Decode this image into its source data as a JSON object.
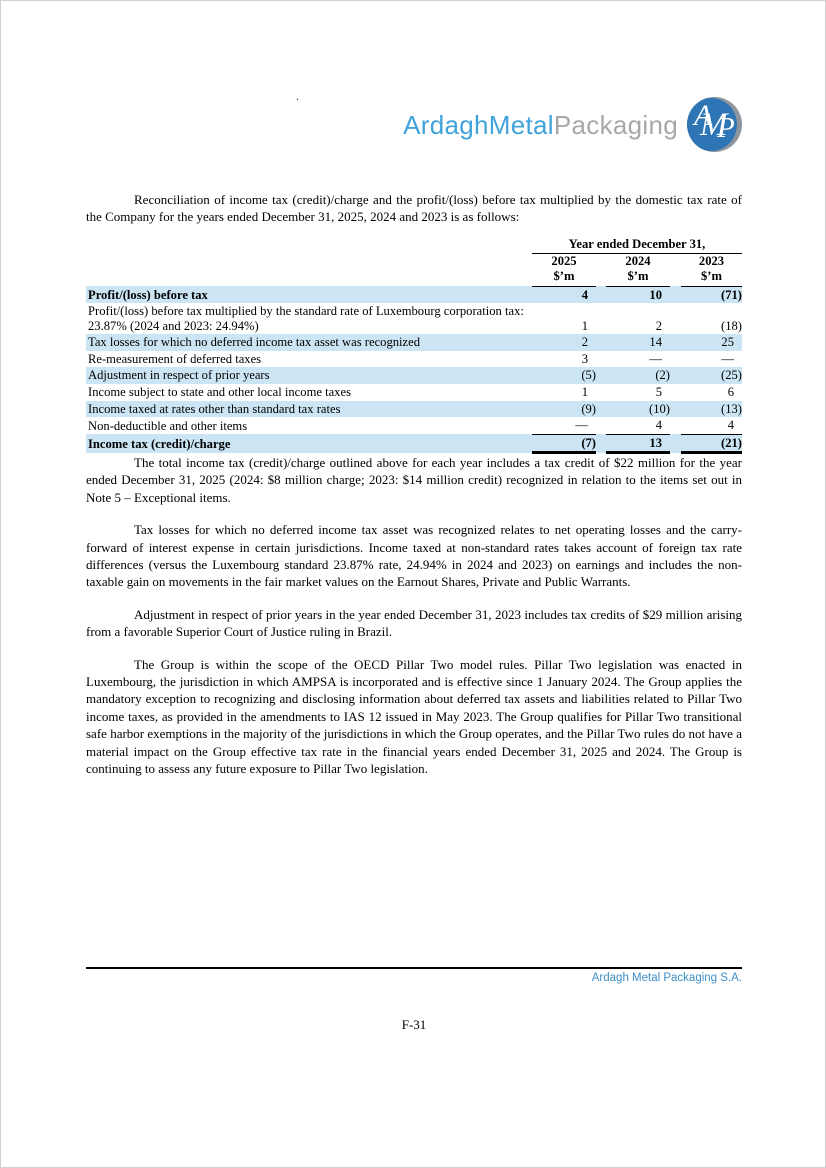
{
  "logo": {
    "brand_blue": "ArdaghMetal",
    "brand_gray": "Packaging",
    "monogram_a": "A",
    "monogram_m": "M",
    "monogram_p": "P"
  },
  "stray_mark": ".",
  "intro": "Reconciliation of income tax (credit)/charge and the profit/(loss) before tax multiplied by the domestic tax rate of the Company for the years ended December 31, 2025, 2024 and 2023 is as follows:",
  "table": {
    "spanner": "Year ended December 31,",
    "columns": [
      {
        "year": "2025",
        "unit": "$’m"
      },
      {
        "year": "2024",
        "unit": "$’m"
      },
      {
        "year": "2023",
        "unit": "$’m"
      }
    ],
    "rows": [
      {
        "label": "Profit/(loss) before tax",
        "v2025": "4",
        "v2024": "10",
        "v2023": "(71)"
      },
      {
        "label": "Profit/(loss) before tax multiplied by the standard rate of Luxembourg corporation tax: 23.87% (2024 and 2023: 24.94%)",
        "v2025": "1",
        "v2024": "2",
        "v2023": "(18)"
      },
      {
        "label": "Tax losses for which no deferred income tax asset was recognized",
        "v2025": "2",
        "v2024": "14",
        "v2023": "25"
      },
      {
        "label": "Re-measurement of deferred taxes",
        "v2025": "3",
        "v2024": "—",
        "v2023": "—"
      },
      {
        "label": "Adjustment in respect of prior years",
        "v2025": "(5)",
        "v2024": "(2)",
        "v2023": "(25)"
      },
      {
        "label": "Income subject to state and other local income taxes",
        "v2025": "1",
        "v2024": "5",
        "v2023": "6"
      },
      {
        "label": "Income taxed at rates other than standard tax rates",
        "v2025": "(9)",
        "v2024": "(10)",
        "v2023": "(13)"
      },
      {
        "label": "Non-deductible and other items",
        "v2025": "—",
        "v2024": "4",
        "v2023": "4"
      },
      {
        "label": "Income tax (credit)/charge",
        "v2025": "(7)",
        "v2024": "13",
        "v2023": "(21)"
      }
    ]
  },
  "paragraphs": [
    "The total income tax (credit)/charge outlined above for each year includes a tax credit of $22 million for the year ended December 31, 2025 (2024: $8 million charge; 2023: $14 million credit) recognized in relation to the items set out in Note 5 – Exceptional items.",
    "Tax losses for which no deferred income tax asset was recognized relates to net operating losses and the carry-forward of interest expense in certain jurisdictions. Income taxed at non-standard rates takes account of foreign tax rate differences (versus the Luxembourg standard 23.87% rate, 24.94% in 2024 and 2023) on earnings and includes the non-taxable gain on movements in the fair market values on the Earnout Shares, Private and Public Warrants.",
    "Adjustment in respect of prior years in the year ended December 31, 2023 includes tax credits of $29 million arising from a favorable Superior Court of Justice ruling in Brazil.",
    "The Group is within the scope of the OECD Pillar Two model rules. Pillar Two legislation was enacted in Luxembourg, the jurisdiction in which AMPSA is incorporated and is effective since 1 January 2024. The Group applies the mandatory exception to recognizing and disclosing information about deferred tax assets and liabilities related to Pillar Two income taxes, as provided in the amendments to IAS 12 issued in May 2023. The Group qualifies for Pillar Two transitional safe harbor exemptions in the majority of the jurisdictions in which the Group operates, and the Pillar Two rules do not have a material impact on the Group effective tax rate in the financial years ended December 31, 2025 and 2024. The Group is continuing to assess any future exposure to Pillar Two legislation."
  ],
  "footer": {
    "company": "Ardagh Metal Packaging S.A.",
    "page_number": "F-31"
  },
  "colors": {
    "highlight_row": "#cbe5f4",
    "brand_blue": "#41a3d9",
    "brand_gray": "#a6a8ab",
    "monogram_blue": "#2e75b6",
    "monogram_gray": "#8d969d",
    "footer_blue": "#3d8fc9"
  }
}
